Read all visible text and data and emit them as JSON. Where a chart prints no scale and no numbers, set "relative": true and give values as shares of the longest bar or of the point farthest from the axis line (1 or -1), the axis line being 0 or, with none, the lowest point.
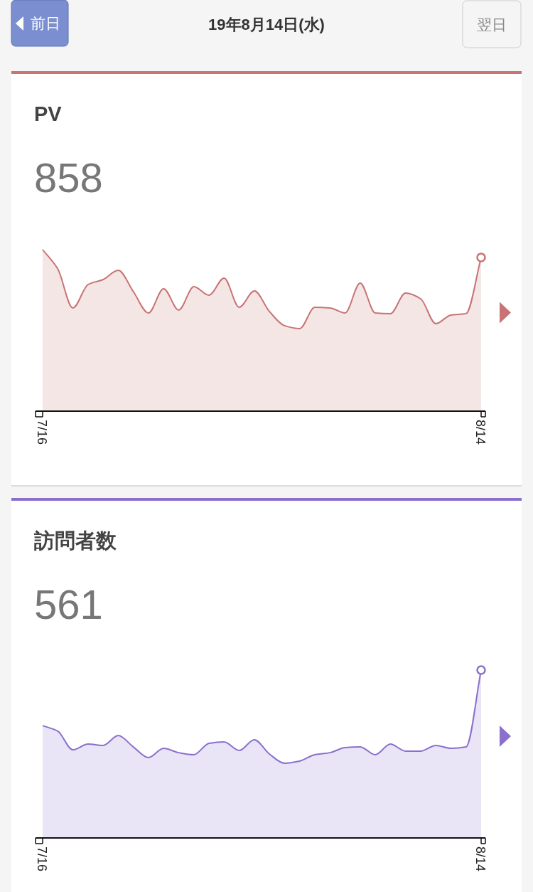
{
  "chart_data": [
    {
      "type": "area",
      "title": "PV",
      "subtitle": "858",
      "relative": true,
      "annotations": [
        "前日",
        "19年8月14日(水)",
        "翌日"
      ],
      "categories": [
        "7/16",
        null,
        null,
        null,
        null,
        null,
        null,
        null,
        null,
        null,
        null,
        null,
        null,
        null,
        null,
        null,
        null,
        null,
        null,
        null,
        null,
        null,
        null,
        null,
        null,
        null,
        null,
        null,
        null,
        "8/14"
      ],
      "series": [
        {
          "color": "#c87474",
          "values": [
            1.0,
            0.881,
            0.639,
            0.784,
            0.815,
            0.872,
            0.74,
            0.608,
            0.758,
            0.626,
            0.771,
            0.718,
            0.824,
            0.643,
            0.744,
            0.617,
            0.529,
            0.511,
            0.643,
            0.639,
            0.608,
            0.793,
            0.608,
            0.604,
            0.731,
            0.696,
            0.542,
            0.595,
            0.604,
            0.952
          ]
        }
      ]
    },
    {
      "type": "area",
      "title": "訪問者数",
      "subtitle": "561",
      "relative": true,
      "categories": [
        "7/16",
        null,
        null,
        null,
        null,
        null,
        null,
        null,
        null,
        null,
        null,
        null,
        null,
        null,
        null,
        null,
        null,
        null,
        null,
        null,
        null,
        null,
        null,
        null,
        null,
        null,
        null,
        null,
        null,
        "8/14"
      ],
      "series": [
        {
          "color": "#8a70cc",
          "values": [
            0.669,
            0.636,
            0.525,
            0.559,
            0.551,
            0.61,
            0.542,
            0.479,
            0.534,
            0.508,
            0.496,
            0.564,
            0.572,
            0.521,
            0.585,
            0.5,
            0.445,
            0.458,
            0.496,
            0.508,
            0.538,
            0.542,
            0.496,
            0.559,
            0.517,
            0.517,
            0.551,
            0.534,
            0.542,
            1.0
          ]
        }
      ]
    }
  ]
}
